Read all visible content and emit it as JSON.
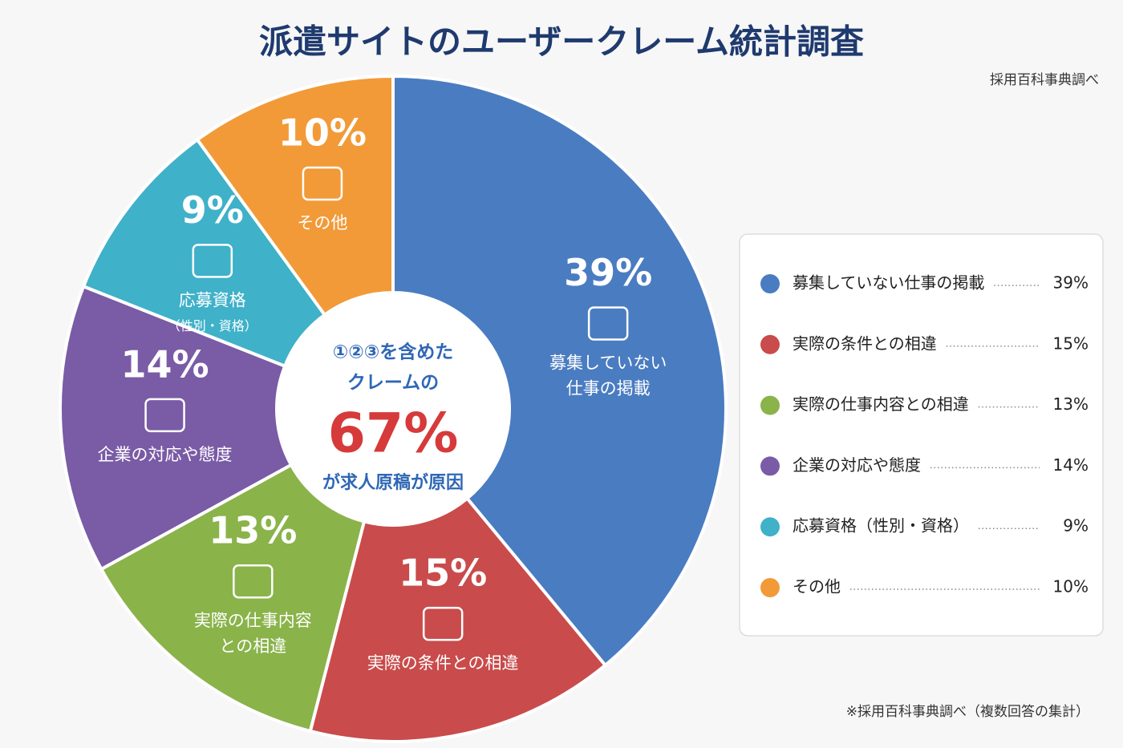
{
  "chart_data": {
    "type": "pie",
    "title": "派遣サイトのユーザークレーム統計調査",
    "source": "採用百科事典調べ",
    "footnote": "※採用百科事典調べ（複数回答の集計）",
    "categories": [
      "募集していない仕事の掲載",
      "実際の条件との相違",
      "実際の仕事内容との相違",
      "企業の対応や態度",
      "応募資格（性別・資格）",
      "その他"
    ],
    "slice_labels": [
      [
        "募集していない",
        "仕事の掲載"
      ],
      [
        "実際の条件との相違"
      ],
      [
        "実際の仕事内容",
        "との相違"
      ],
      [
        "企業の対応や態度"
      ],
      [
        "応募資格",
        "（性別・資格）"
      ],
      [
        "その他"
      ]
    ],
    "values": [
      39,
      15,
      13,
      14,
      9,
      10
    ],
    "value_labels": [
      "39%",
      "15%",
      "13%",
      "14%",
      "9%",
      "10%"
    ],
    "colors": [
      "#4a7cc1",
      "#c94b4b",
      "#8ab34a",
      "#7a5ba6",
      "#3fb1c9",
      "#f29a38"
    ],
    "center": {
      "lines_top": [
        "①②③を含めた",
        "クレームの"
      ],
      "value": 67,
      "value_label": "67%",
      "line_bottom": "が求人原稿が原因"
    }
  }
}
